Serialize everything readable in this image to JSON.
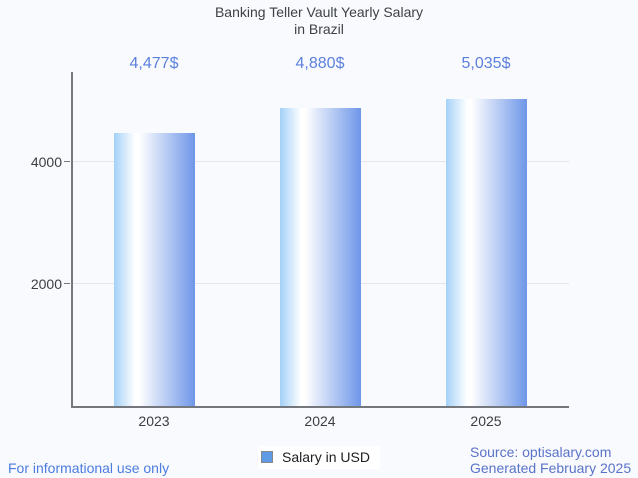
{
  "title": {
    "line1": "Banking Teller Vault Yearly Salary",
    "line2": "in Brazil"
  },
  "chart_data": {
    "type": "bar",
    "title": "Banking Teller Vault Yearly Salary in Brazil",
    "categories": [
      "2023",
      "2024",
      "2025"
    ],
    "series": [
      {
        "name": "Salary in USD",
        "values": [
          4477,
          4880,
          5035
        ]
      }
    ],
    "value_labels": [
      "4,477$",
      "4,880$",
      "5,035$"
    ],
    "xlabel": "",
    "ylabel": "",
    "yticks": [
      2000,
      4000
    ],
    "ylim": [
      0,
      5470
    ],
    "grid": true,
    "legend_position": "bottom"
  },
  "legend": {
    "label": "Salary in USD"
  },
  "footer": {
    "left": "For informational use only",
    "source": "Source: optisalary.com",
    "generated": "Generated February 2025"
  },
  "colors": {
    "background": "#f9fafd",
    "title": "#3e4245",
    "tick_label": "#3b3e42",
    "axis_line": "#74777b",
    "gridline": "#e3e6ea",
    "value_label": "#5c80de",
    "legend_fill": "#5f9ae4",
    "legend_border": "#84878c",
    "legend_text": "#202124",
    "footer_left": "#4c7ce2",
    "footer_right": "#5a73c9",
    "bar_gradient": [
      "#a4d1f8",
      "#ffffff",
      "#6e96e8"
    ]
  }
}
